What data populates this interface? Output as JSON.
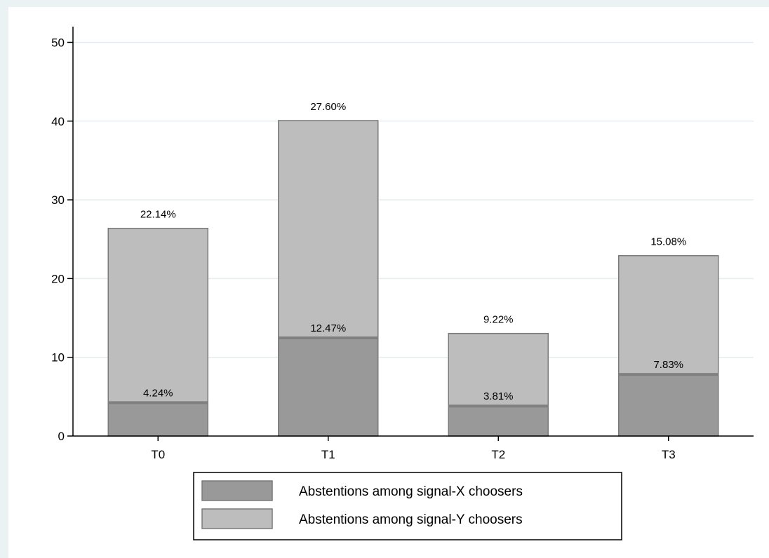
{
  "chart_data": {
    "type": "bar",
    "stacked": true,
    "categories": [
      "T0",
      "T1",
      "T2",
      "T3"
    ],
    "series": [
      {
        "name": "Abstentions among signal-X choosers",
        "values": [
          4.24,
          12.47,
          3.81,
          7.83
        ],
        "labels": [
          "4.24%",
          "12.47%",
          "3.81%",
          "7.83%"
        ],
        "color": "#999999"
      },
      {
        "name": "Abstentions among signal-Y choosers",
        "values": [
          22.14,
          27.6,
          9.22,
          15.08
        ],
        "labels": [
          "22.14%",
          "27.60%",
          "9.22%",
          "15.08%"
        ],
        "color": "#bdbdbd"
      }
    ],
    "ylim": [
      0,
      52
    ],
    "yticks": [
      0,
      10,
      20,
      30,
      40,
      50
    ],
    "title": "",
    "xlabel": "",
    "ylabel": "",
    "grid": "horizontal",
    "legend_placement": "bottom-center",
    "bar_edge_color": "#7a7a7a",
    "grid_color": "#e3eef0"
  }
}
